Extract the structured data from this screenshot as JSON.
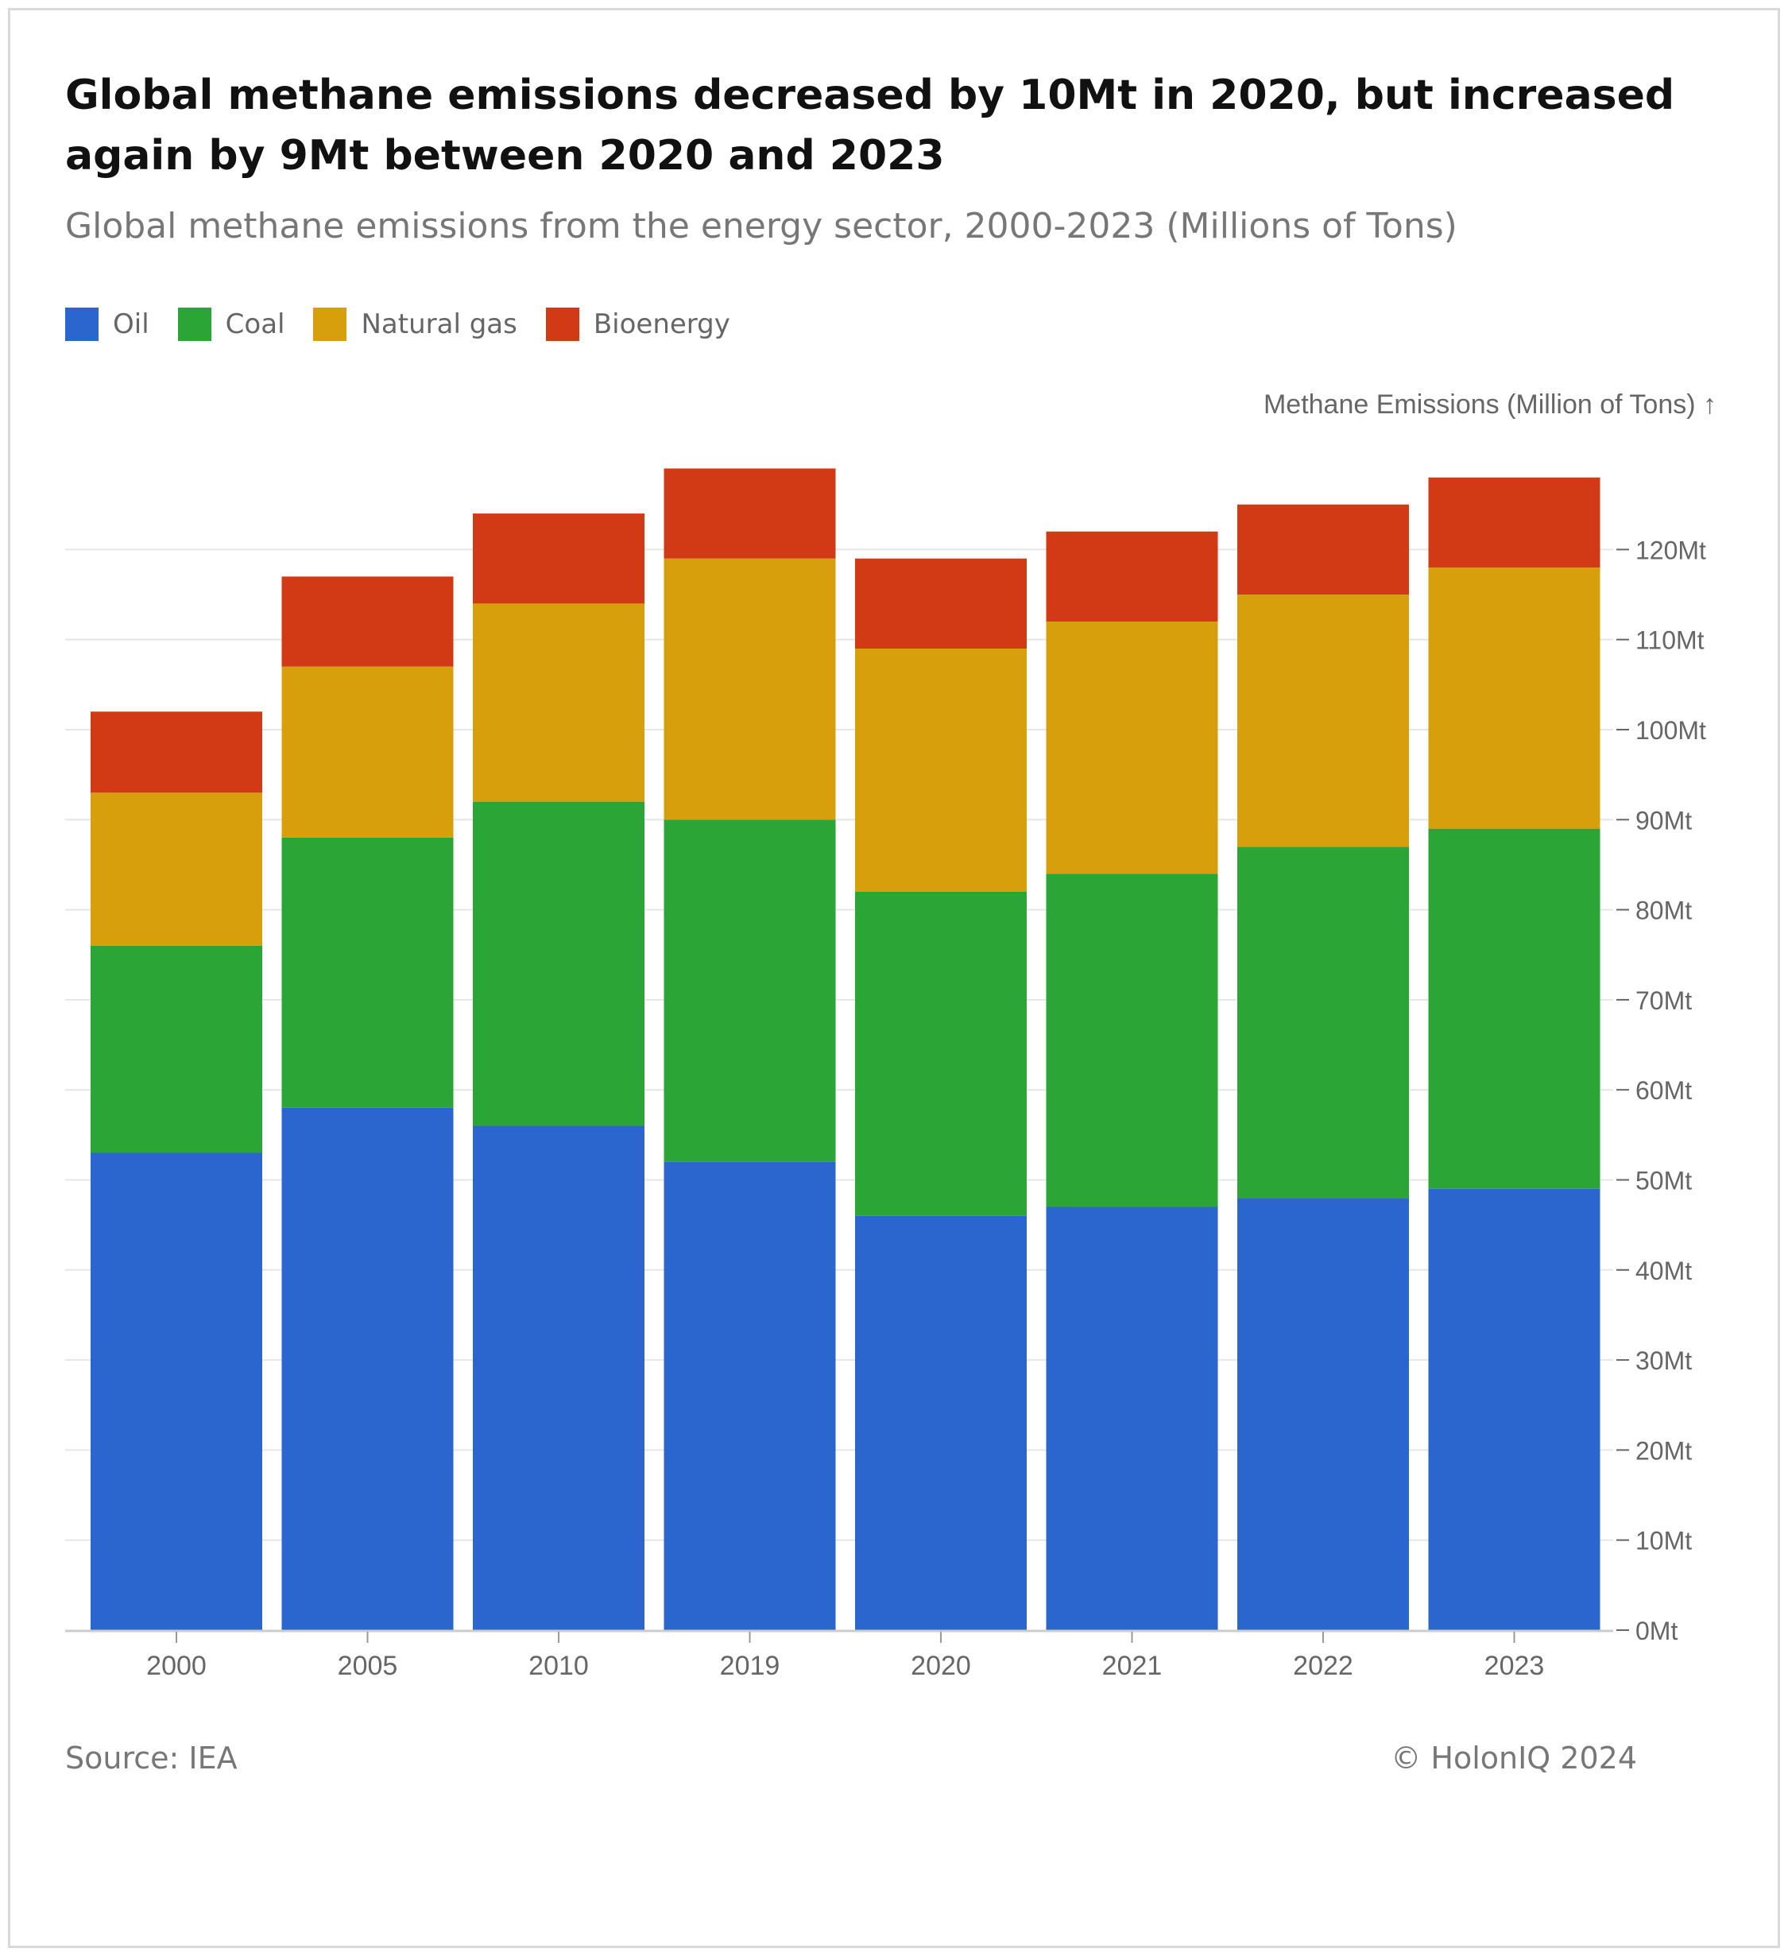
{
  "title": "Global methane emissions decreased by 10Mt in 2020, but increased again by 9Mt between 2020 and 2023",
  "subtitle": "Global methane emissions from the energy sector, 2000-2023 (Millions of Tons)",
  "source": "Source: IEA",
  "copyright": "© HolonIQ 2024",
  "colors": {
    "Oil": "#2a66ce",
    "Coal": "#2ba535",
    "Natural gas": "#d89f0c",
    "Bioenergy": "#d13a14"
  },
  "chart_data": {
    "type": "bar",
    "stacked": true,
    "title": "Global methane emissions decreased by 10Mt in 2020, but increased again by 9Mt between 2020 and 2023",
    "ylabel": "Methane Emissions (Million of Tons) ↑",
    "xlabel": "",
    "categories": [
      "2000",
      "2005",
      "2010",
      "2019",
      "2020",
      "2021",
      "2022",
      "2023"
    ],
    "series": [
      {
        "name": "Oil",
        "values": [
          53,
          58,
          56,
          52,
          46,
          47,
          48,
          49
        ]
      },
      {
        "name": "Coal",
        "values": [
          23,
          30,
          36,
          38,
          36,
          37,
          39,
          40
        ]
      },
      {
        "name": "Natural gas",
        "values": [
          17,
          19,
          22,
          29,
          27,
          28,
          28,
          29
        ]
      },
      {
        "name": "Bioenergy",
        "values": [
          9,
          10,
          10,
          10,
          10,
          10,
          10,
          10
        ]
      }
    ],
    "ylim": [
      0,
      130
    ],
    "yticks": [
      0,
      10,
      20,
      30,
      40,
      50,
      60,
      70,
      80,
      90,
      100,
      110,
      120
    ],
    "ytick_labels": [
      "0Mt",
      "10Mt",
      "20Mt",
      "30Mt",
      "40Mt",
      "50Mt",
      "60Mt",
      "70Mt",
      "80Mt",
      "90Mt",
      "100Mt",
      "110Mt",
      "120Mt"
    ],
    "y_axis_position": "right",
    "legend_position": "top-left",
    "grid": true
  }
}
